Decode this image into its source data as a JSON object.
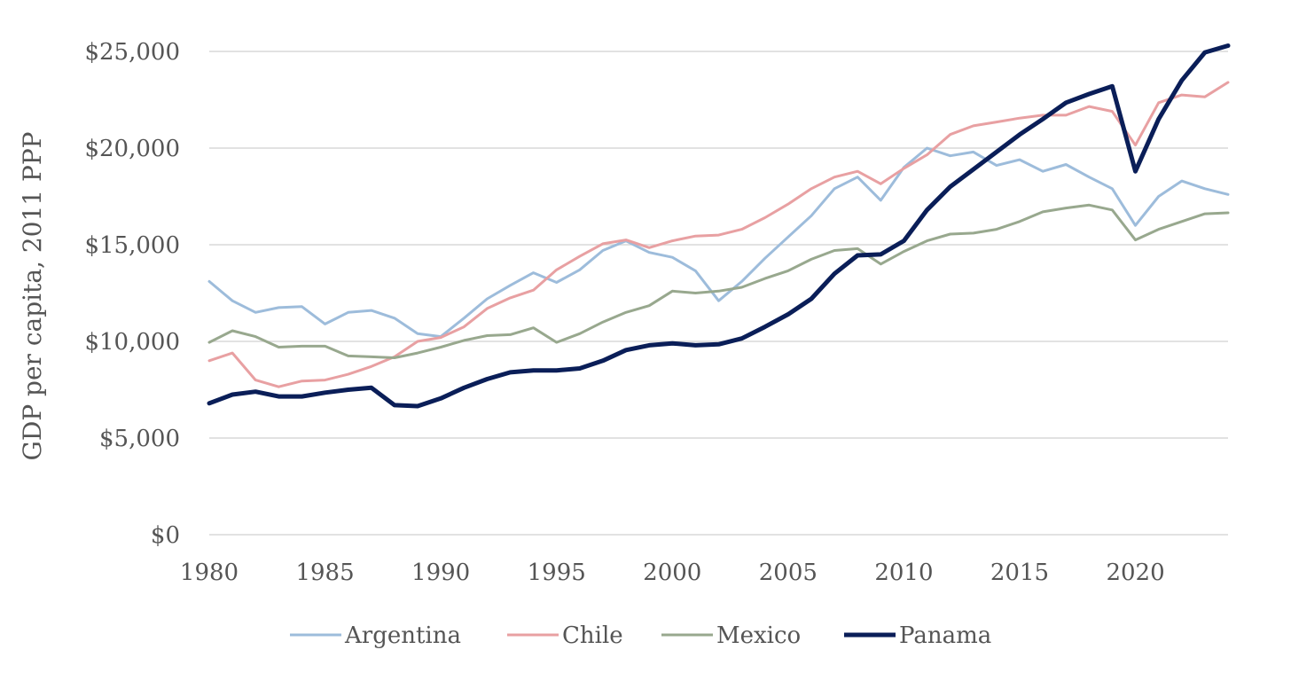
{
  "chart_data": {
    "type": "line",
    "title": "",
    "xlabel": "",
    "ylabel": "GDP per capita, 2011 PPP",
    "ylim": [
      0,
      25000
    ],
    "xlim": [
      1980,
      2024
    ],
    "grid": true,
    "legend_position": "bottom",
    "y_ticks": [
      {
        "value": 0,
        "label": "$0"
      },
      {
        "value": 5000,
        "label": "$5,000"
      },
      {
        "value": 10000,
        "label": "$10,000"
      },
      {
        "value": 15000,
        "label": "$15,000"
      },
      {
        "value": 20000,
        "label": "$20,000"
      },
      {
        "value": 25000,
        "label": "$25,000"
      }
    ],
    "x_ticks": [
      {
        "value": 1980,
        "label": "1980"
      },
      {
        "value": 1985,
        "label": "1985"
      },
      {
        "value": 1990,
        "label": "1990"
      },
      {
        "value": 1995,
        "label": "1995"
      },
      {
        "value": 2000,
        "label": "2000"
      },
      {
        "value": 2005,
        "label": "2005"
      },
      {
        "value": 2010,
        "label": "2010"
      },
      {
        "value": 2015,
        "label": "2015"
      },
      {
        "value": 2020,
        "label": "2020"
      }
    ],
    "x": [
      1980,
      1981,
      1982,
      1983,
      1984,
      1985,
      1986,
      1987,
      1988,
      1989,
      1990,
      1991,
      1992,
      1993,
      1994,
      1995,
      1996,
      1997,
      1998,
      1999,
      2000,
      2001,
      2002,
      2003,
      2004,
      2005,
      2006,
      2007,
      2008,
      2009,
      2010,
      2011,
      2012,
      2013,
      2014,
      2015,
      2016,
      2017,
      2018,
      2019,
      2020,
      2021,
      2022,
      2023,
      2024
    ],
    "series": [
      {
        "name": "Argentina",
        "color": "#9dbcdb",
        "stroke_width": 3,
        "values": [
          13100,
          12100,
          11500,
          11750,
          11800,
          10900,
          11500,
          11600,
          11200,
          10400,
          10250,
          11200,
          12200,
          12900,
          13550,
          13050,
          13700,
          14700,
          15200,
          14600,
          14350,
          13650,
          12100,
          13100,
          14300,
          15400,
          16500,
          17900,
          18500,
          17300,
          19000,
          20000,
          19600,
          19800,
          19100,
          19400,
          18800,
          19150,
          18500,
          17900,
          16000,
          17500,
          18300,
          17900,
          17600
        ]
      },
      {
        "name": "Chile",
        "color": "#e8a0a2",
        "stroke_width": 3,
        "values": [
          9000,
          9400,
          8000,
          7650,
          7950,
          8000,
          8300,
          8700,
          9200,
          10000,
          10200,
          10750,
          11700,
          12250,
          12650,
          13700,
          14400,
          15050,
          15250,
          14850,
          15200,
          15450,
          15500,
          15800,
          16400,
          17100,
          17900,
          18500,
          18800,
          18150,
          18950,
          19650,
          20700,
          21150,
          21350,
          21550,
          21700,
          21700,
          22150,
          21900,
          20150,
          22350,
          22750,
          22650,
          23400
        ]
      },
      {
        "name": "Mexico",
        "color": "#98a88e",
        "stroke_width": 3,
        "values": [
          9950,
          10550,
          10250,
          9700,
          9750,
          9750,
          9250,
          9200,
          9150,
          9400,
          9700,
          10050,
          10300,
          10350,
          10700,
          9950,
          10400,
          11000,
          11500,
          11850,
          12600,
          12500,
          12600,
          12800,
          13250,
          13650,
          14250,
          14700,
          14800,
          14000,
          14650,
          15200,
          15550,
          15600,
          15800,
          16200,
          16700,
          16900,
          17050,
          16800,
          15250,
          15800,
          16200,
          16600,
          16650
        ]
      },
      {
        "name": "Panama",
        "color": "#0a1e58",
        "stroke_width": 5,
        "values": [
          6800,
          7250,
          7400,
          7150,
          7150,
          7350,
          7500,
          7600,
          6700,
          6650,
          7050,
          7600,
          8050,
          8400,
          8500,
          8500,
          8600,
          9000,
          9550,
          9800,
          9900,
          9800,
          9850,
          10150,
          10750,
          11400,
          12200,
          13500,
          14450,
          14500,
          15200,
          16800,
          18000,
          18900,
          19800,
          20700,
          21500,
          22350,
          22800,
          23200,
          18800,
          21500,
          23500,
          24950,
          25300
        ]
      }
    ]
  }
}
